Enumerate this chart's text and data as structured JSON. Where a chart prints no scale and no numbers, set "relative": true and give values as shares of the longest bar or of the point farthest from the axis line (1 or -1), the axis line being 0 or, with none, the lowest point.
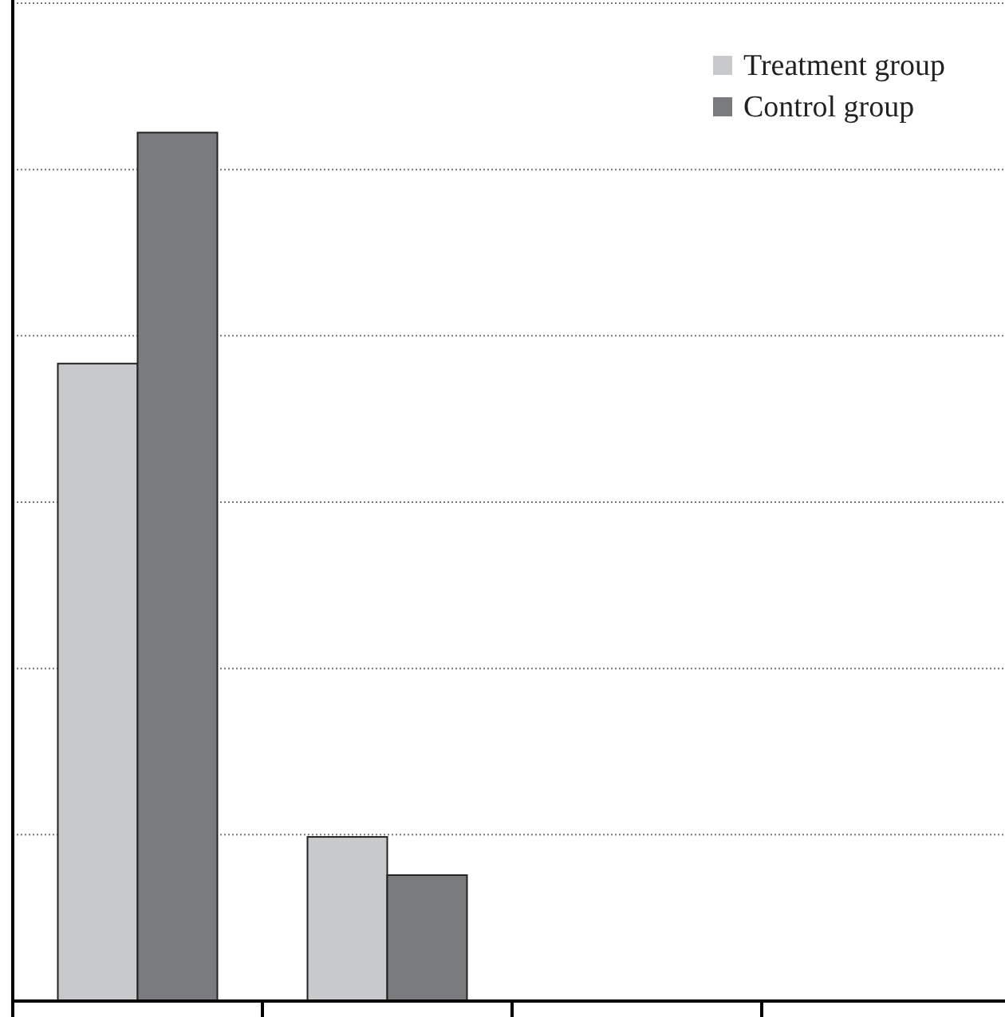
{
  "chart_data": {
    "type": "bar",
    "relative": true,
    "categories": [
      null,
      null
    ],
    "series": [
      {
        "name": "Treatment group",
        "color": "#c8c9cb",
        "values": [
          0.734,
          0.189
        ]
      },
      {
        "name": "Control group",
        "color": "#7a7b7d",
        "values": [
          1,
          0.145
        ]
      }
    ],
    "grid": "y",
    "legend": "top right"
  }
}
